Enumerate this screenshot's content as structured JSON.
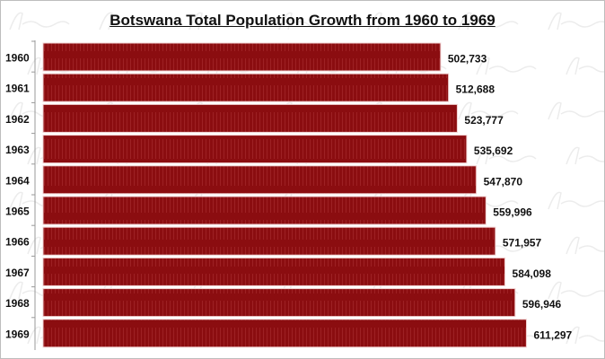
{
  "chart_data": {
    "type": "bar",
    "orientation": "horizontal",
    "title": "Botswana Total Population Growth from 1960 to 1969",
    "categories": [
      "1960",
      "1961",
      "1962",
      "1963",
      "1964",
      "1965",
      "1966",
      "1967",
      "1968",
      "1969"
    ],
    "values": [
      502733,
      512688,
      523777,
      535692,
      547870,
      559996,
      571957,
      584098,
      596946,
      611297
    ],
    "value_labels": [
      "502,733",
      "512,688",
      "523,777",
      "535,692",
      "547,870",
      "559,996",
      "571,957",
      "584,098",
      "596,946",
      "611,297"
    ],
    "xlim": [
      0,
      700000
    ],
    "grid": false,
    "bar_color": "#8b0d10",
    "watermark": "Afroluent"
  }
}
